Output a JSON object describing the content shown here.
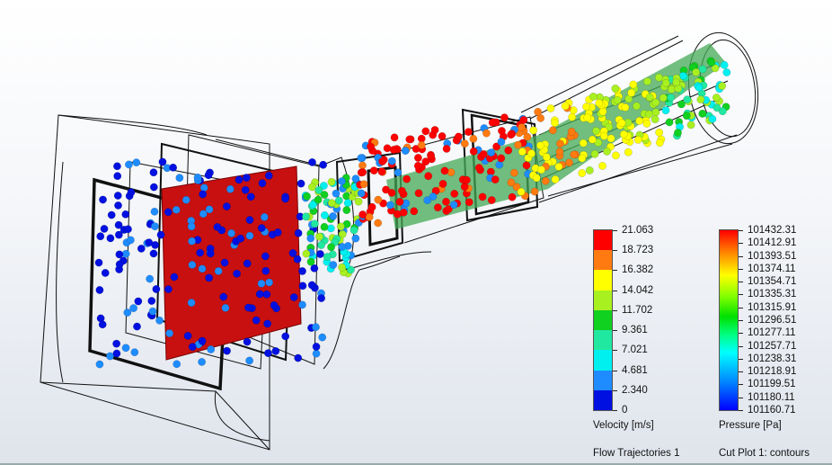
{
  "velocity_legend": {
    "title": "Velocity [m/s]",
    "plot_name": "Flow Trajectories 1",
    "labels": [
      "21.063",
      "18.723",
      "16.382",
      "14.042",
      "11.702",
      "9.361",
      "7.021",
      "4.681",
      "2.340",
      "0"
    ],
    "band_colors": [
      "#ff0000",
      "#ff7a10",
      "#ffff00",
      "#a8f020",
      "#10d020",
      "#20e8a0",
      "#00f0f0",
      "#1e8cff",
      "#0010e0"
    ]
  },
  "pressure_legend": {
    "title": "Pressure [Pa]",
    "plot_name": "Cut Plot 1: contours",
    "labels": [
      "101432.31",
      "101412.91",
      "101393.51",
      "101374.11",
      "101354.71",
      "101335.31",
      "101315.91",
      "101296.51",
      "101277.11",
      "101257.71",
      "101238.31",
      "101218.91",
      "101199.51",
      "101180.11",
      "101160.71"
    ]
  },
  "colors": {
    "cut_plane": "#c81010",
    "wireframe": "#111111"
  }
}
